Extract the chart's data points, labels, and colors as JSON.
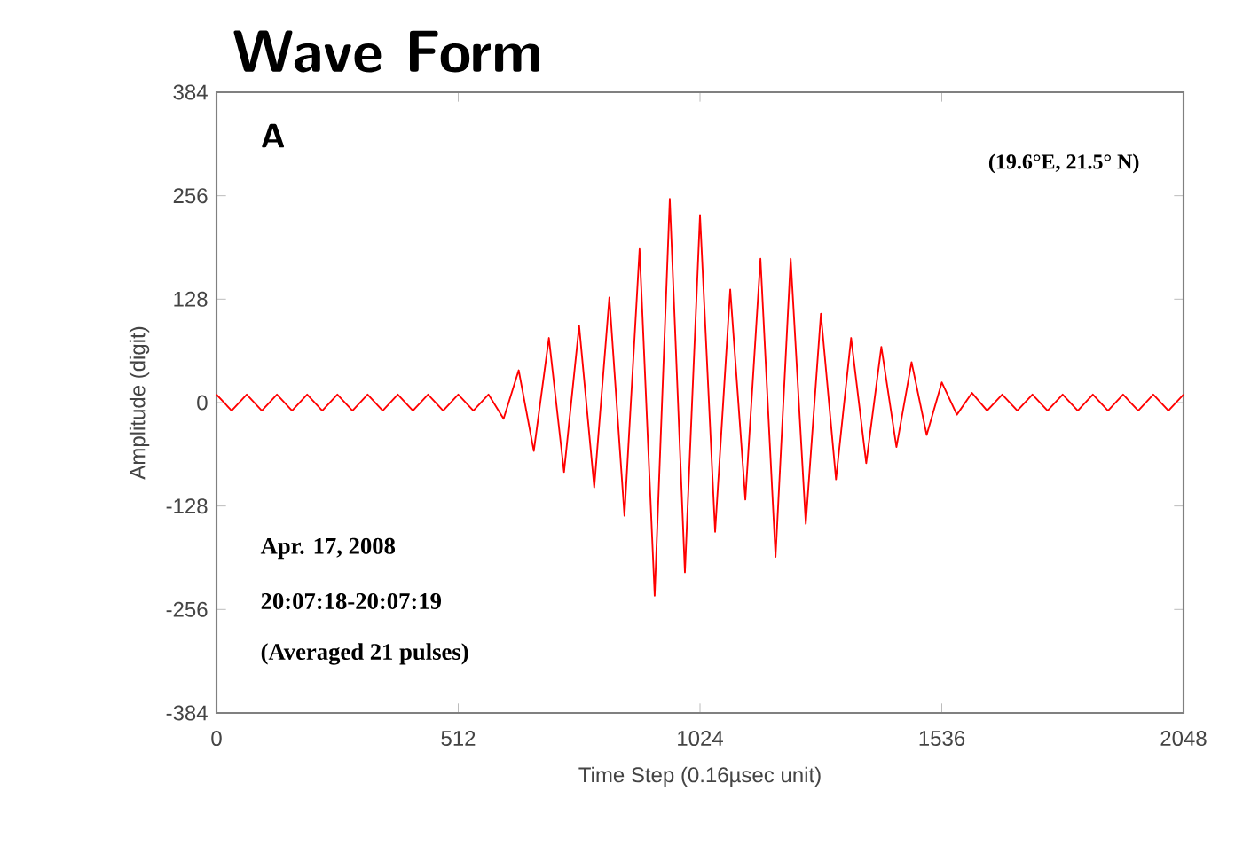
{
  "chart_data": {
    "type": "line",
    "title": "Wave Form",
    "xlabel": "Time Step (0.16µsec unit)",
    "ylabel": "Amplitude (digit)",
    "annotations": [
      "A",
      "(19.6°E, 21.5° N)",
      "Apr. 17, 2008",
      "20:07:18-20:07:19",
      "(Averaged 21 pulses)"
    ],
    "xlim": [
      0,
      2048
    ],
    "xticks": [
      0,
      512,
      1024,
      1536,
      2048
    ],
    "ylim": [
      -384,
      384
    ],
    "yticks": [
      -384,
      -256,
      -128,
      0,
      128,
      256,
      384
    ],
    "marker": "none",
    "line_style": "solid",
    "series": [
      {
        "color": "#ff0000",
        "x": [
          0,
          32,
          64,
          96,
          128,
          160,
          192,
          224,
          256,
          288,
          320,
          352,
          384,
          416,
          448,
          480,
          512,
          544,
          576,
          608,
          640,
          672,
          704,
          736,
          768,
          800,
          832,
          864,
          896,
          928,
          960,
          992,
          1024,
          1056,
          1088,
          1120,
          1152,
          1184,
          1216,
          1248,
          1280,
          1312,
          1344,
          1376,
          1408,
          1440,
          1472,
          1504,
          1536,
          1568,
          1600,
          1632,
          1664,
          1696,
          1728,
          1760,
          1792,
          1824,
          1856,
          1888,
          1920,
          1952,
          1984,
          2016,
          2048
        ],
        "values": [
          10,
          -10,
          10,
          -10,
          10,
          -10,
          10,
          -10,
          10,
          -10,
          10,
          -10,
          10,
          -10,
          10,
          -10,
          10,
          -10,
          10,
          -20,
          40,
          -60,
          80,
          -86,
          95,
          -105,
          130,
          -140,
          190,
          -239,
          252,
          -210,
          232,
          -160,
          140,
          -120,
          178,
          -191,
          178,
          -150,
          110,
          -95,
          80,
          -75,
          69,
          -55,
          50,
          -40,
          25,
          -15,
          12,
          -10,
          10,
          -10,
          10,
          -10,
          10,
          -10,
          10,
          -10,
          10,
          -10,
          10,
          -10,
          10
        ]
      }
    ]
  }
}
